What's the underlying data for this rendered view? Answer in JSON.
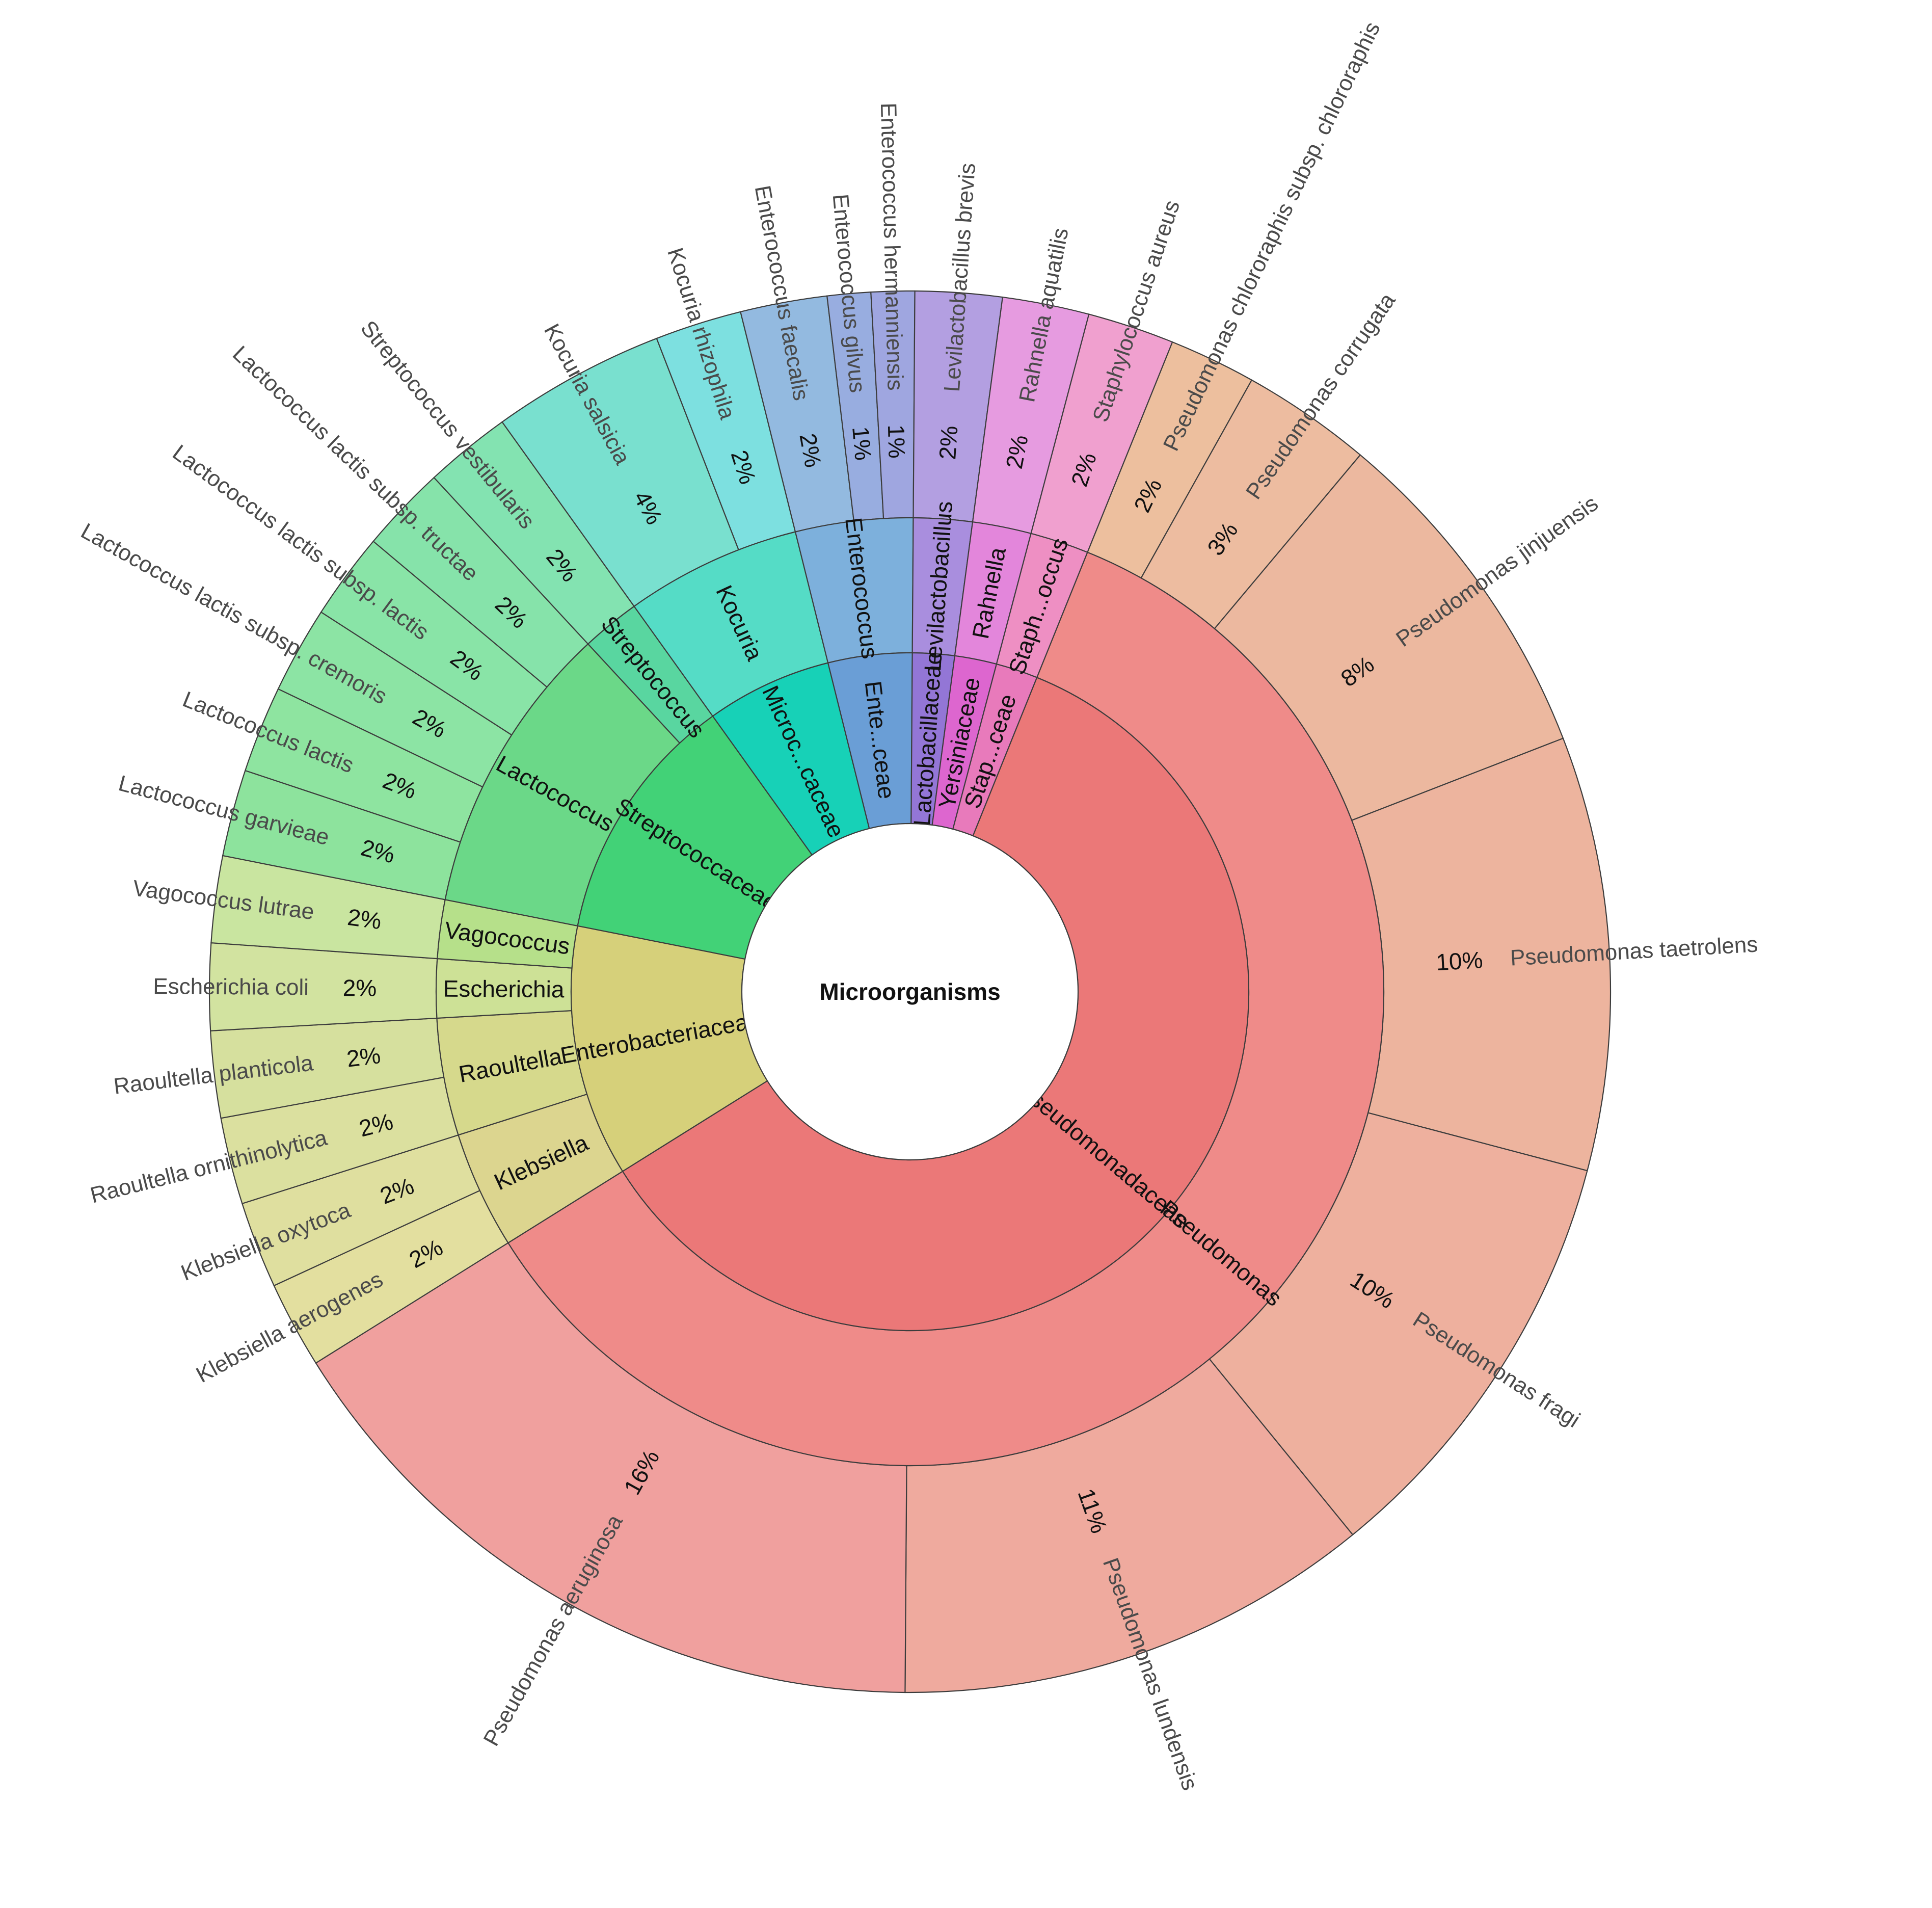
{
  "chart_data": {
    "type": "sunburst",
    "root_label": "Microorganisms",
    "colors": {
      "pseudo_family": "#eb7878",
      "pseudo_genus": "#ef8b89",
      "entero_family": "#d6d07a",
      "klebs_genus": "#dcd58f",
      "raoul_genus": "#d6d98c",
      "esch_genus": "#cde196",
      "vago_genus": "#b6e08a",
      "strep_family": "#42d277",
      "lacto_genus": "#6bd888",
      "strepto_genus": "#59d6a0",
      "micro_family": "#17d1b7",
      "kocuria_genus": "#55dcc6",
      "ente_family": "#6a9ed6",
      "enterococcus_genus": "#7db0dc",
      "lactob_family": "#9376d6",
      "levil_genus": "#a98ede",
      "yersin_family": "#dd66cf",
      "rahn_genus": "#e386db",
      "staph_family": "#e87abb",
      "staph_genus": "#ee8fc3"
    },
    "families": [
      {
        "label": "Pseudomonadaceae",
        "genera": [
          {
            "label": "Pseudomonas",
            "species": [
              {
                "label": "Pseudomonas chlororaphis subsp. chlororaphis",
                "pct": "2%",
                "value": 2,
                "color": "#edbf9e"
              },
              {
                "label": "Pseudomonas corrugata",
                "pct": "3%",
                "value": 3,
                "color": "#edbca0"
              },
              {
                "label": "Pseudomonas jinjuensis",
                "pct": "8%",
                "value": 8,
                "color": "#ecb89f"
              },
              {
                "label": "Pseudomonas taetrolens",
                "pct": "10%",
                "value": 10,
                "color": "#edb49e"
              },
              {
                "label": "Pseudomonas fragi",
                "pct": "10%",
                "value": 10,
                "color": "#eeb09e"
              },
              {
                "label": "Pseudomonas lundensis",
                "pct": "11%",
                "value": 11,
                "color": "#efaa9e"
              },
              {
                "label": "Pseudomonas aeruginosa",
                "pct": "16%",
                "value": 16,
                "color": "#f0a09e"
              }
            ]
          }
        ]
      },
      {
        "label": "Enterobacteriaceae",
        "genera": [
          {
            "label": "Klebsiella",
            "species": [
              {
                "label": "Klebsiella aerogenes",
                "pct": "2%",
                "value": 2,
                "color": "#e3df9f"
              },
              {
                "label": "Klebsiella oxytoca",
                "pct": "2%",
                "value": 2,
                "color": "#dfdf9f"
              }
            ]
          },
          {
            "label": "Raoultella",
            "species": [
              {
                "label": "Raoultella ornithinolytica",
                "pct": "2%",
                "value": 2,
                "color": "#dbe09f"
              },
              {
                "label": "Raoultella planticola",
                "pct": "2%",
                "value": 2,
                "color": "#d6e09e"
              }
            ]
          },
          {
            "label": "Escherichia",
            "species": [
              {
                "label": "Escherichia coli",
                "pct": "2%",
                "value": 2,
                "color": "#d2e3a0"
              }
            ]
          },
          {
            "label": "Vagococcus",
            "species": [
              {
                "label": "Vagococcus lutrae",
                "pct": "2%",
                "value": 2,
                "color": "#c9e5a0"
              }
            ]
          }
        ]
      },
      {
        "label": "Streptococcaceae",
        "genera": [
          {
            "label": "Lactococcus",
            "species": [
              {
                "label": "Lactococcus garvieae",
                "pct": "2%",
                "value": 2,
                "color": "#8de39d"
              },
              {
                "label": "Lactococcus lactis",
                "pct": "2%",
                "value": 2,
                "color": "#8ee4a0"
              },
              {
                "label": "Lactococcus lactis subsp. cremoris",
                "pct": "2%",
                "value": 2,
                "color": "#8ce4a4"
              },
              {
                "label": "Lactococcus lactis subsp. lactis",
                "pct": "2%",
                "value": 2,
                "color": "#89e4a7"
              },
              {
                "label": "Lactococcus lactis subsp. tructae",
                "pct": "2%",
                "value": 2,
                "color": "#86e3aa"
              }
            ]
          },
          {
            "label": "Streptococcus",
            "species": [
              {
                "label": "Streptococcus vestibularis",
                "pct": "2%",
                "value": 2,
                "color": "#83e3b1"
              }
            ]
          }
        ]
      },
      {
        "label": "Microc...caceae",
        "genera": [
          {
            "label": "Kocuria",
            "species": [
              {
                "label": "Kocuria salsicia",
                "pct": "4%",
                "value": 4,
                "color": "#79e0cf"
              },
              {
                "label": "Kocuria rhizophila",
                "pct": "2%",
                "value": 2,
                "color": "#7de0e0"
              }
            ]
          }
        ]
      },
      {
        "label": "Ente...ceae",
        "genera": [
          {
            "label": "Enterococcus",
            "species": [
              {
                "label": "Enterococcus faecalis",
                "pct": "2%",
                "value": 2,
                "color": "#93bae0"
              },
              {
                "label": "Enterococcus gilvus",
                "pct": "1%",
                "value": 1,
                "color": "#98ade0"
              },
              {
                "label": "Enterococcus hermanniensis",
                "pct": "1%",
                "value": 1,
                "color": "#9fa6e0"
              }
            ]
          }
        ]
      },
      {
        "label": "Lactobacillaceae",
        "genera": [
          {
            "label": "Levilactobacillus",
            "species": [
              {
                "label": "Levilactobacillus brevis",
                "pct": "2%",
                "value": 2,
                "color": "#b39fe1"
              }
            ]
          }
        ]
      },
      {
        "label": "Yersiniaceae",
        "genera": [
          {
            "label": "Rahnella",
            "species": [
              {
                "label": "Rahnella aquatilis",
                "pct": "2%",
                "value": 2,
                "color": "#e69be0"
              }
            ]
          }
        ]
      },
      {
        "label": "Stap...ceae",
        "genera": [
          {
            "label": "Staph...occus",
            "species": [
              {
                "label": "Staphylococcus aureus",
                "pct": "2%",
                "value": 2,
                "color": "#f0a0cf"
              }
            ]
          }
        ]
      }
    ]
  }
}
